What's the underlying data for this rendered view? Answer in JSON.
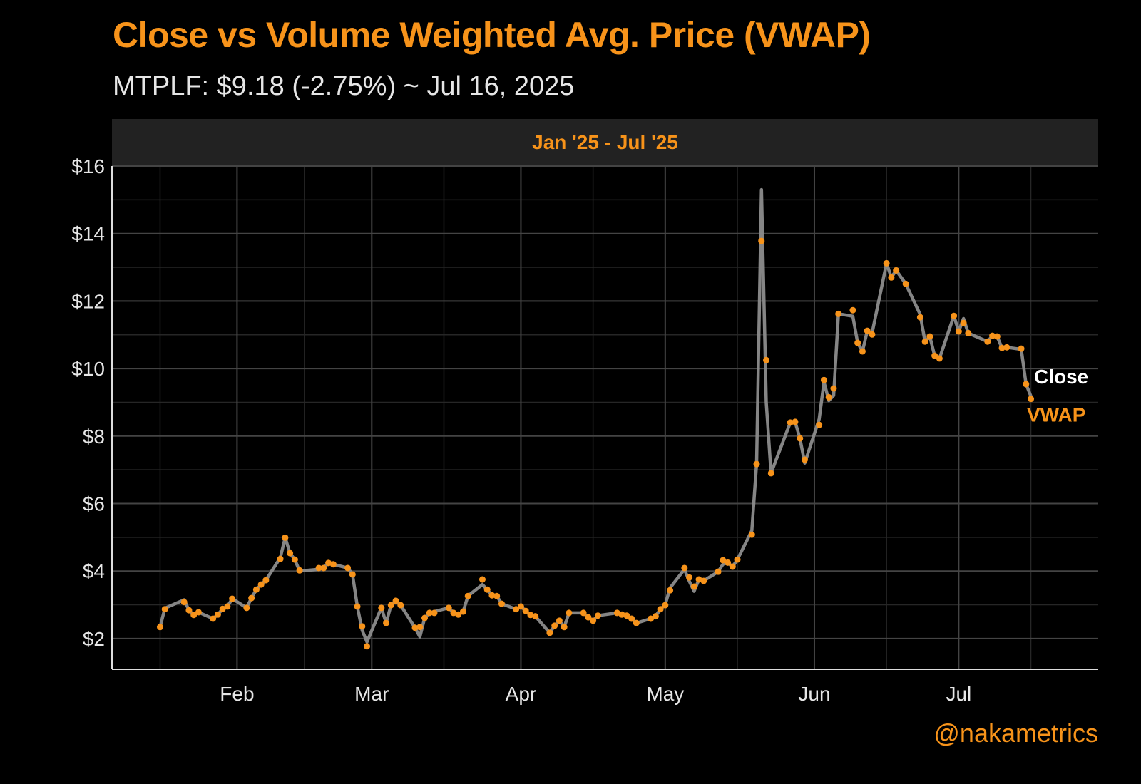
{
  "title": "Close vs Volume Weighted Avg. Price (VWAP)",
  "subtitle": "MTPLF: $9.18 (-2.75%) ~ Jul 16, 2025",
  "panel_label": "Jan '25 - Jul '25",
  "credit": "@nakametrics",
  "colors": {
    "background": "#000000",
    "accent": "#f7931a",
    "close_line": "#8c8c8c",
    "grid": "#3a3a3a"
  },
  "chart_data": {
    "type": "line",
    "title": "Close vs Volume Weighted Avg. Price (VWAP)",
    "xlabel": "",
    "ylabel": "",
    "ylim": [
      1.09,
      16.0
    ],
    "xlim": [
      "2025-01-06",
      "2025-07-30"
    ],
    "y_ticks": [
      {
        "v": 2,
        "label": "$2"
      },
      {
        "v": 4,
        "label": "$4"
      },
      {
        "v": 6,
        "label": "$6"
      },
      {
        "v": 8,
        "label": "$8"
      },
      {
        "v": 10,
        "label": "$10"
      },
      {
        "v": 12,
        "label": "$12"
      },
      {
        "v": 14,
        "label": "$14"
      },
      {
        "v": 16,
        "label": "$16"
      }
    ],
    "x_ticks": [
      {
        "d": "2025-02-01",
        "label": "Feb"
      },
      {
        "d": "2025-03-01",
        "label": "Mar"
      },
      {
        "d": "2025-04-01",
        "label": "Apr"
      },
      {
        "d": "2025-05-01",
        "label": "May"
      },
      {
        "d": "2025-06-01",
        "label": "Jun"
      },
      {
        "d": "2025-07-01",
        "label": "Jul"
      }
    ],
    "grid": true,
    "legend": {
      "position": "right-end-labels",
      "close_label": "Close",
      "vwap_label": "VWAP"
    },
    "dates": [
      "2025-01-16",
      "2025-01-17",
      "2025-01-21",
      "2025-01-22",
      "2025-01-23",
      "2025-01-24",
      "2025-01-27",
      "2025-01-28",
      "2025-01-29",
      "2025-01-30",
      "2025-01-31",
      "2025-02-03",
      "2025-02-04",
      "2025-02-05",
      "2025-02-06",
      "2025-02-07",
      "2025-02-10",
      "2025-02-11",
      "2025-02-12",
      "2025-02-13",
      "2025-02-14",
      "2025-02-18",
      "2025-02-19",
      "2025-02-20",
      "2025-02-21",
      "2025-02-24",
      "2025-02-25",
      "2025-02-26",
      "2025-02-27",
      "2025-02-28",
      "2025-03-03",
      "2025-03-04",
      "2025-03-05",
      "2025-03-06",
      "2025-03-07",
      "2025-03-10",
      "2025-03-11",
      "2025-03-12",
      "2025-03-13",
      "2025-03-14",
      "2025-03-17",
      "2025-03-18",
      "2025-03-19",
      "2025-03-20",
      "2025-03-21",
      "2025-03-24",
      "2025-03-25",
      "2025-03-26",
      "2025-03-27",
      "2025-03-28",
      "2025-03-31",
      "2025-04-01",
      "2025-04-02",
      "2025-04-03",
      "2025-04-04",
      "2025-04-07",
      "2025-04-08",
      "2025-04-09",
      "2025-04-10",
      "2025-04-11",
      "2025-04-14",
      "2025-04-15",
      "2025-04-16",
      "2025-04-17",
      "2025-04-21",
      "2025-04-22",
      "2025-04-23",
      "2025-04-24",
      "2025-04-25",
      "2025-04-28",
      "2025-04-29",
      "2025-04-30",
      "2025-05-01",
      "2025-05-02",
      "2025-05-05",
      "2025-05-06",
      "2025-05-07",
      "2025-05-08",
      "2025-05-09",
      "2025-05-12",
      "2025-05-13",
      "2025-05-14",
      "2025-05-15",
      "2025-05-16",
      "2025-05-19",
      "2025-05-20",
      "2025-05-21",
      "2025-05-22",
      "2025-05-23",
      "2025-05-27",
      "2025-05-28",
      "2025-05-29",
      "2025-05-30",
      "2025-06-02",
      "2025-06-03",
      "2025-06-04",
      "2025-06-05",
      "2025-06-06",
      "2025-06-09",
      "2025-06-10",
      "2025-06-11",
      "2025-06-12",
      "2025-06-13",
      "2025-06-16",
      "2025-06-17",
      "2025-06-18",
      "2025-06-20",
      "2025-06-23",
      "2025-06-24",
      "2025-06-25",
      "2025-06-26",
      "2025-06-27",
      "2025-06-30",
      "2025-07-01",
      "2025-07-02",
      "2025-07-03",
      "2025-07-07",
      "2025-07-08",
      "2025-07-09",
      "2025-07-10",
      "2025-07-11",
      "2025-07-14",
      "2025-07-15",
      "2025-07-16"
    ],
    "series": [
      {
        "name": "Close",
        "values": [
          2.34,
          2.9,
          3.15,
          2.84,
          2.7,
          2.78,
          2.59,
          2.71,
          2.88,
          2.95,
          3.18,
          2.91,
          3.2,
          3.45,
          3.6,
          3.73,
          4.4,
          4.99,
          4.53,
          4.34,
          4.0,
          4.05,
          4.09,
          4.24,
          4.2,
          4.09,
          3.9,
          2.95,
          2.25,
          1.9,
          2.91,
          2.46,
          2.99,
          3.12,
          2.99,
          2.32,
          2.05,
          2.61,
          2.76,
          2.8,
          2.91,
          2.76,
          2.71,
          2.8,
          3.26,
          3.6,
          3.45,
          3.28,
          3.26,
          3.03,
          2.87,
          2.95,
          2.82,
          2.7,
          2.66,
          2.17,
          2.38,
          2.53,
          2.34,
          2.76,
          2.76,
          2.63,
          2.53,
          2.68,
          2.76,
          2.71,
          2.68,
          2.59,
          2.46,
          2.59,
          2.66,
          2.87,
          3.0,
          3.5,
          4.05,
          3.7,
          3.4,
          3.75,
          3.71,
          3.98,
          4.2,
          4.25,
          4.13,
          4.34,
          5.2,
          7.2,
          15.3,
          9.0,
          6.9,
          8.4,
          8.42,
          7.93,
          7.2,
          8.5,
          9.6,
          9.05,
          9.2,
          11.62,
          11.55,
          10.76,
          10.51,
          11.12,
          11.05,
          13.12,
          12.7,
          12.91,
          12.51,
          11.6,
          10.8,
          10.95,
          10.38,
          10.3,
          11.56,
          11.1,
          11.48,
          11.05,
          10.8,
          10.97,
          10.95,
          10.61,
          10.63,
          10.57,
          9.54,
          9.18
        ]
      },
      {
        "name": "VWAP",
        "values": [
          2.34,
          2.87,
          3.08,
          2.84,
          2.7,
          2.78,
          2.59,
          2.71,
          2.88,
          2.95,
          3.18,
          2.91,
          3.2,
          3.45,
          3.6,
          3.73,
          4.36,
          4.99,
          4.53,
          4.34,
          4.02,
          4.09,
          4.09,
          4.24,
          4.2,
          4.09,
          3.9,
          2.95,
          2.36,
          1.77,
          2.91,
          2.46,
          2.99,
          3.12,
          2.99,
          2.32,
          2.34,
          2.61,
          2.76,
          2.76,
          2.91,
          2.76,
          2.71,
          2.8,
          3.26,
          3.75,
          3.45,
          3.28,
          3.26,
          3.03,
          2.87,
          2.95,
          2.82,
          2.7,
          2.66,
          2.17,
          2.38,
          2.53,
          2.34,
          2.76,
          2.76,
          2.63,
          2.53,
          2.68,
          2.76,
          2.71,
          2.68,
          2.59,
          2.46,
          2.59,
          2.66,
          2.87,
          2.99,
          3.43,
          4.09,
          3.81,
          3.54,
          3.75,
          3.71,
          3.98,
          4.32,
          4.25,
          4.13,
          4.34,
          5.08,
          7.17,
          13.78,
          10.25,
          6.9,
          8.4,
          8.42,
          7.93,
          7.3,
          8.33,
          9.66,
          9.15,
          9.41,
          11.62,
          11.73,
          10.76,
          10.51,
          11.12,
          11.01,
          13.12,
          12.7,
          12.91,
          12.51,
          11.52,
          10.8,
          10.95,
          10.38,
          10.3,
          11.56,
          11.1,
          11.35,
          11.05,
          10.8,
          10.97,
          10.95,
          10.61,
          10.63,
          10.59,
          9.54,
          9.1
        ]
      }
    ]
  }
}
